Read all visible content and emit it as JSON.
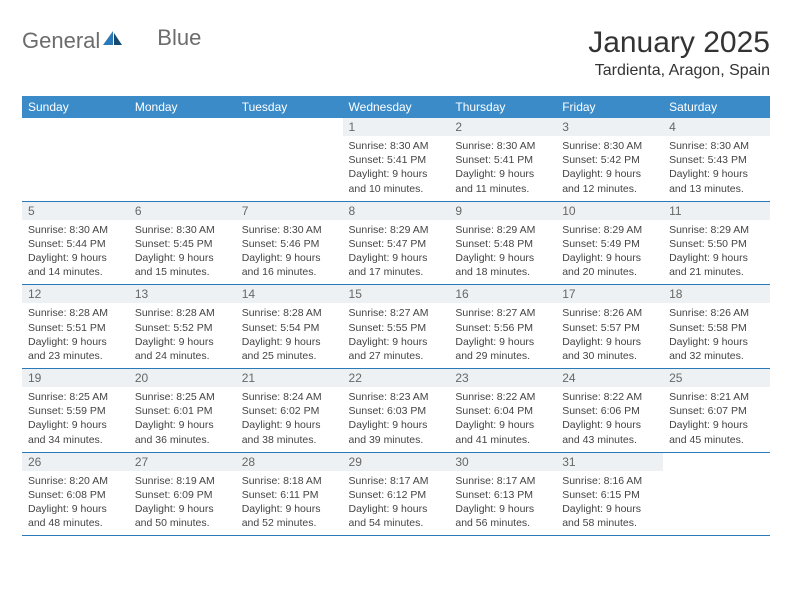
{
  "brand": {
    "word1": "General",
    "word2": "Blue",
    "brand_color": "#2a7ab9",
    "gray": "#6c6c6c"
  },
  "header": {
    "month": "January 2025",
    "location": "Tardienta, Aragon, Spain"
  },
  "colors": {
    "header_bg": "#3b8bc9",
    "header_text": "#ffffff",
    "rule": "#2a7ab9",
    "daynum_bg": "#eef1f3",
    "daynum_text": "#676767",
    "body_text": "#444444",
    "page_bg": "#ffffff"
  },
  "typography": {
    "title_fontsize": 30,
    "location_fontsize": 16,
    "header_fontsize": 12,
    "cell_fontsize": 10.5
  },
  "day_headers": [
    "Sunday",
    "Monday",
    "Tuesday",
    "Wednesday",
    "Thursday",
    "Friday",
    "Saturday"
  ],
  "labels": {
    "sunrise": "Sunrise:",
    "sunset": "Sunset:",
    "daylight": "Daylight:"
  },
  "first_weekday_index": 3,
  "days": [
    {
      "n": 1,
      "sunrise": "8:30 AM",
      "sunset": "5:41 PM",
      "daylight": "9 hours and 10 minutes."
    },
    {
      "n": 2,
      "sunrise": "8:30 AM",
      "sunset": "5:41 PM",
      "daylight": "9 hours and 11 minutes."
    },
    {
      "n": 3,
      "sunrise": "8:30 AM",
      "sunset": "5:42 PM",
      "daylight": "9 hours and 12 minutes."
    },
    {
      "n": 4,
      "sunrise": "8:30 AM",
      "sunset": "5:43 PM",
      "daylight": "9 hours and 13 minutes."
    },
    {
      "n": 5,
      "sunrise": "8:30 AM",
      "sunset": "5:44 PM",
      "daylight": "9 hours and 14 minutes."
    },
    {
      "n": 6,
      "sunrise": "8:30 AM",
      "sunset": "5:45 PM",
      "daylight": "9 hours and 15 minutes."
    },
    {
      "n": 7,
      "sunrise": "8:30 AM",
      "sunset": "5:46 PM",
      "daylight": "9 hours and 16 minutes."
    },
    {
      "n": 8,
      "sunrise": "8:29 AM",
      "sunset": "5:47 PM",
      "daylight": "9 hours and 17 minutes."
    },
    {
      "n": 9,
      "sunrise": "8:29 AM",
      "sunset": "5:48 PM",
      "daylight": "9 hours and 18 minutes."
    },
    {
      "n": 10,
      "sunrise": "8:29 AM",
      "sunset": "5:49 PM",
      "daylight": "9 hours and 20 minutes."
    },
    {
      "n": 11,
      "sunrise": "8:29 AM",
      "sunset": "5:50 PM",
      "daylight": "9 hours and 21 minutes."
    },
    {
      "n": 12,
      "sunrise": "8:28 AM",
      "sunset": "5:51 PM",
      "daylight": "9 hours and 23 minutes."
    },
    {
      "n": 13,
      "sunrise": "8:28 AM",
      "sunset": "5:52 PM",
      "daylight": "9 hours and 24 minutes."
    },
    {
      "n": 14,
      "sunrise": "8:28 AM",
      "sunset": "5:54 PM",
      "daylight": "9 hours and 25 minutes."
    },
    {
      "n": 15,
      "sunrise": "8:27 AM",
      "sunset": "5:55 PM",
      "daylight": "9 hours and 27 minutes."
    },
    {
      "n": 16,
      "sunrise": "8:27 AM",
      "sunset": "5:56 PM",
      "daylight": "9 hours and 29 minutes."
    },
    {
      "n": 17,
      "sunrise": "8:26 AM",
      "sunset": "5:57 PM",
      "daylight": "9 hours and 30 minutes."
    },
    {
      "n": 18,
      "sunrise": "8:26 AM",
      "sunset": "5:58 PM",
      "daylight": "9 hours and 32 minutes."
    },
    {
      "n": 19,
      "sunrise": "8:25 AM",
      "sunset": "5:59 PM",
      "daylight": "9 hours and 34 minutes."
    },
    {
      "n": 20,
      "sunrise": "8:25 AM",
      "sunset": "6:01 PM",
      "daylight": "9 hours and 36 minutes."
    },
    {
      "n": 21,
      "sunrise": "8:24 AM",
      "sunset": "6:02 PM",
      "daylight": "9 hours and 38 minutes."
    },
    {
      "n": 22,
      "sunrise": "8:23 AM",
      "sunset": "6:03 PM",
      "daylight": "9 hours and 39 minutes."
    },
    {
      "n": 23,
      "sunrise": "8:22 AM",
      "sunset": "6:04 PM",
      "daylight": "9 hours and 41 minutes."
    },
    {
      "n": 24,
      "sunrise": "8:22 AM",
      "sunset": "6:06 PM",
      "daylight": "9 hours and 43 minutes."
    },
    {
      "n": 25,
      "sunrise": "8:21 AM",
      "sunset": "6:07 PM",
      "daylight": "9 hours and 45 minutes."
    },
    {
      "n": 26,
      "sunrise": "8:20 AM",
      "sunset": "6:08 PM",
      "daylight": "9 hours and 48 minutes."
    },
    {
      "n": 27,
      "sunrise": "8:19 AM",
      "sunset": "6:09 PM",
      "daylight": "9 hours and 50 minutes."
    },
    {
      "n": 28,
      "sunrise": "8:18 AM",
      "sunset": "6:11 PM",
      "daylight": "9 hours and 52 minutes."
    },
    {
      "n": 29,
      "sunrise": "8:17 AM",
      "sunset": "6:12 PM",
      "daylight": "9 hours and 54 minutes."
    },
    {
      "n": 30,
      "sunrise": "8:17 AM",
      "sunset": "6:13 PM",
      "daylight": "9 hours and 56 minutes."
    },
    {
      "n": 31,
      "sunrise": "8:16 AM",
      "sunset": "6:15 PM",
      "daylight": "9 hours and 58 minutes."
    }
  ]
}
